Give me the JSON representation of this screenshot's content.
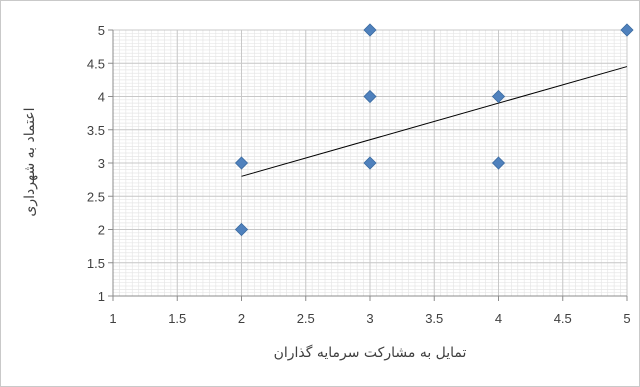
{
  "chart_data": {
    "type": "scatter",
    "title": "",
    "xlabel": "تمایل به مشارکت سرمایه گذاران",
    "ylabel": "اعتماد به شهرداری",
    "xlim": [
      1,
      5
    ],
    "ylim": [
      1,
      5
    ],
    "x_ticks": [
      "1",
      "1.5",
      "2",
      "2.5",
      "3",
      "3.5",
      "4",
      "4.5",
      "5"
    ],
    "y_ticks": [
      "1",
      "1.5",
      "2",
      "2.5",
      "3",
      "3.5",
      "4",
      "4.5",
      "5"
    ],
    "grid": true,
    "marker": "diamond",
    "points": [
      {
        "x": 2,
        "y": 2
      },
      {
        "x": 2,
        "y": 3
      },
      {
        "x": 3,
        "y": 3
      },
      {
        "x": 3,
        "y": 4
      },
      {
        "x": 3,
        "y": 5
      },
      {
        "x": 4,
        "y": 3
      },
      {
        "x": 4,
        "y": 4
      },
      {
        "x": 5,
        "y": 5
      }
    ],
    "trendline": {
      "type": "linear",
      "x_start": 2,
      "y_start": 2.8,
      "x_end": 5,
      "y_end": 4.45
    },
    "colors": {
      "marker": "#4f81bd",
      "trendline": "#000000",
      "grid_major": "#c8c8c8",
      "grid_minor": "#e6e6e6"
    }
  }
}
